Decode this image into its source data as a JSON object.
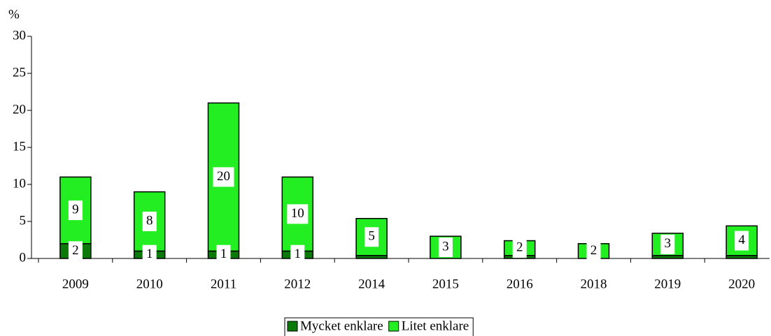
{
  "chart_data": {
    "type": "stacked_bar",
    "y_label": "%",
    "categories": [
      "2009",
      "2010",
      "2011",
      "2012",
      "2014",
      "2015",
      "2016",
      "2018",
      "2019",
      "2020"
    ],
    "series": [
      {
        "name": "Mycket enklare",
        "color": "#0b7a0b",
        "values": [
          2,
          1,
          1,
          1,
          0.4,
          0,
          0.4,
          0,
          0.4,
          0.4
        ],
        "value_labels": [
          "2",
          "1",
          "1",
          "1",
          null,
          null,
          null,
          null,
          null,
          null
        ]
      },
      {
        "name": "Litet enklare",
        "color": "#22ee22",
        "values": [
          9,
          8,
          20,
          10,
          5,
          3,
          2,
          2,
          3,
          4
        ],
        "value_labels": [
          "9",
          "8",
          "20",
          "10",
          "5",
          "3",
          "2",
          "2",
          "3",
          "4"
        ]
      }
    ],
    "ylim": [
      0,
      30
    ],
    "yticks": [
      0,
      5,
      10,
      15,
      20,
      25,
      30
    ],
    "legend": "bottom"
  }
}
